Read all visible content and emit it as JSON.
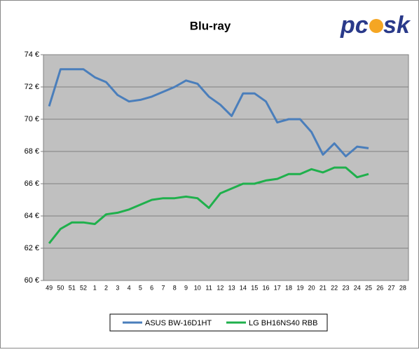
{
  "chart_data": {
    "type": "line",
    "title": "Blu-ray",
    "logo": [
      "pc",
      "sk"
    ],
    "categories": [
      "49",
      "50",
      "51",
      "52",
      "1",
      "2",
      "3",
      "4",
      "5",
      "6",
      "7",
      "8",
      "9",
      "10",
      "11",
      "12",
      "13",
      "14",
      "15",
      "16",
      "17",
      "18",
      "19",
      "20",
      "21",
      "22",
      "23",
      "24",
      "25",
      "26",
      "27",
      "28"
    ],
    "series": [
      {
        "name": "ASUS BW-16D1HT",
        "color": "#4a7ebb",
        "values": [
          70.8,
          73.1,
          73.1,
          73.1,
          72.6,
          72.3,
          71.5,
          71.1,
          71.2,
          71.4,
          71.7,
          72.0,
          72.4,
          72.2,
          71.4,
          70.9,
          70.2,
          71.6,
          71.6,
          71.1,
          69.8,
          70.0,
          70.0,
          69.2,
          67.8,
          68.5,
          67.7,
          68.3,
          68.2,
          null,
          null,
          null
        ]
      },
      {
        "name": "LG BH16NS40 RBB",
        "color": "#1fb04c",
        "values": [
          62.3,
          63.2,
          63.6,
          63.6,
          63.5,
          64.1,
          64.2,
          64.4,
          64.7,
          65.0,
          65.1,
          65.1,
          65.2,
          65.1,
          64.5,
          65.4,
          65.7,
          66.0,
          66.0,
          66.2,
          66.3,
          66.6,
          66.6,
          66.9,
          66.7,
          67.0,
          67.0,
          66.4,
          66.6,
          null,
          null,
          null
        ]
      }
    ],
    "ylim": [
      60,
      74
    ],
    "yticks": [
      {
        "value": 60,
        "label": "60 €"
      },
      {
        "value": 62,
        "label": "62 €"
      },
      {
        "value": 64,
        "label": "64 €"
      },
      {
        "value": 66,
        "label": "66 €"
      },
      {
        "value": 68,
        "label": "68 €"
      },
      {
        "value": 70,
        "label": "70 €"
      },
      {
        "value": 72,
        "label": "72 €"
      },
      {
        "value": 74,
        "label": "74 €"
      }
    ],
    "grid": true,
    "legend": "bottom",
    "plot_background": "#c0c0c0"
  }
}
